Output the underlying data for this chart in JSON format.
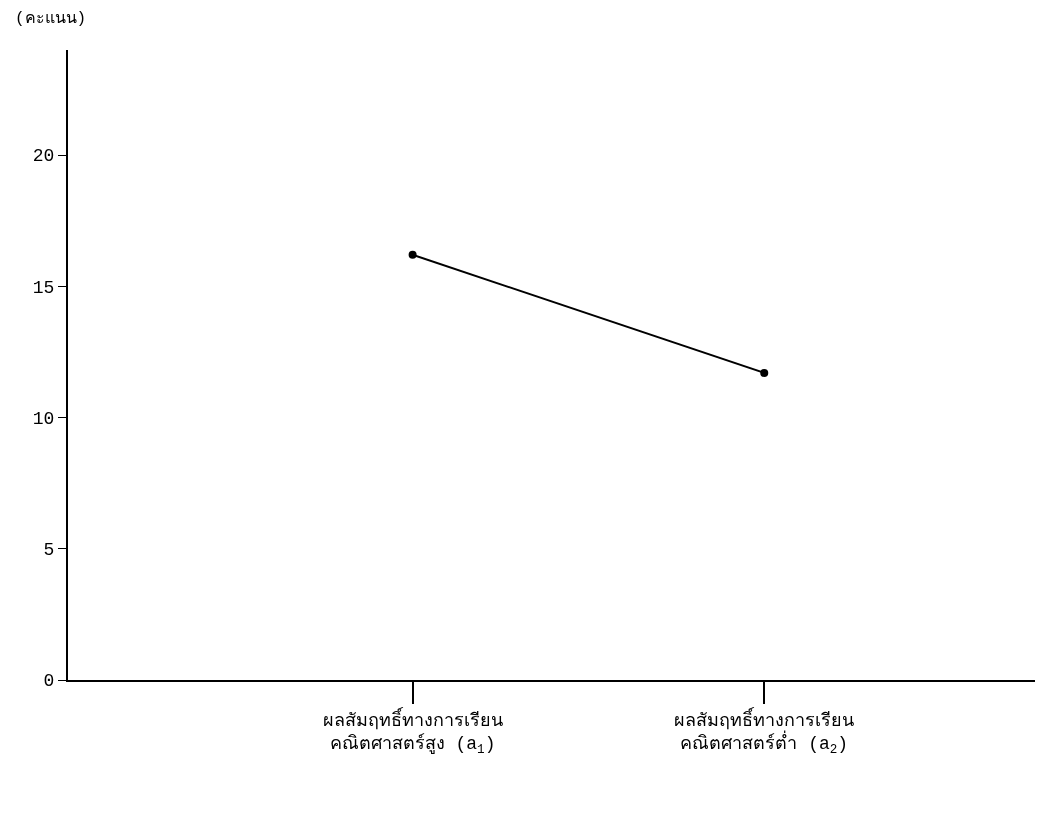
{
  "chart_data": {
    "type": "line",
    "ylabel": "(คะแนน)",
    "categories": [
      "ผลสัมฤทธิ์ทางการเรียน\nคณิตศาสตร์สูง (a$_{1}$)",
      "ผลสัมฤทธิ์ทางการเรียน\nคณิตศาสตร์ต่ำ (a$_{2}$)"
    ],
    "values": [
      16.2,
      11.7
    ],
    "color": "#000000",
    "marker": "circle",
    "line_style": "solid",
    "ylim": [
      0,
      24
    ],
    "yticks": [
      0,
      5,
      10,
      15,
      20
    ],
    "legend": false
  }
}
